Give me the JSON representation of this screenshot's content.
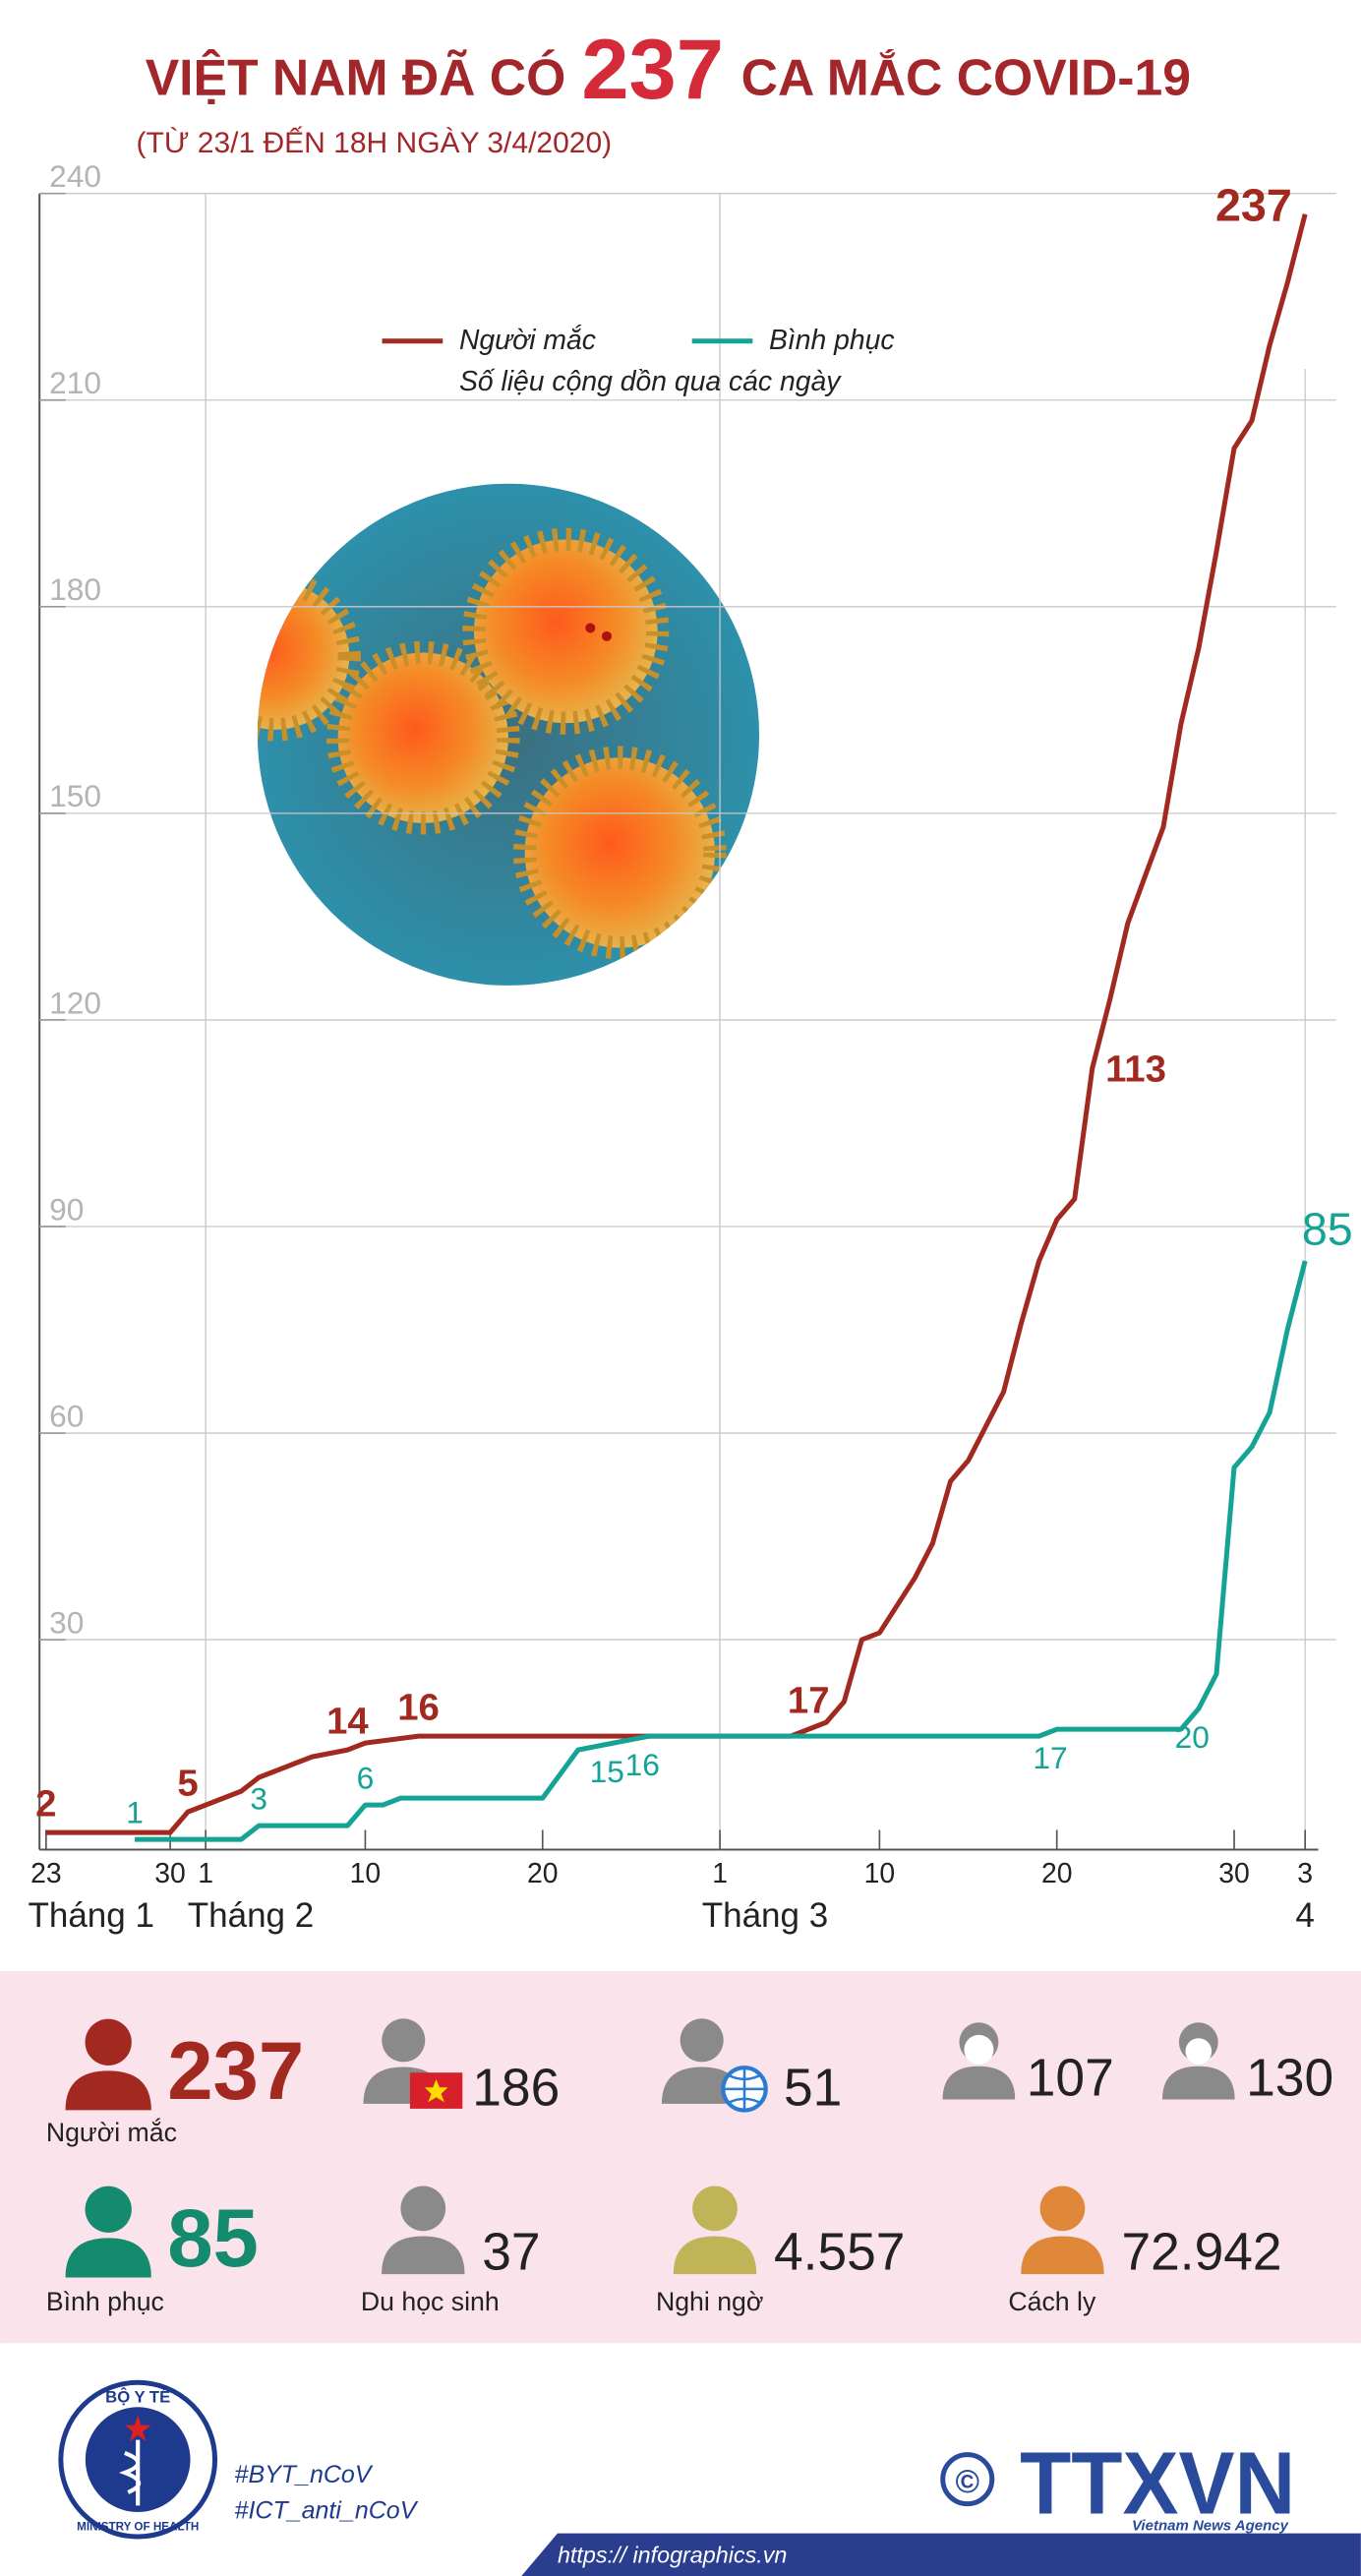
{
  "chart_data": {
    "type": "line",
    "title_pre": "VIỆT NAM ĐÃ CÓ",
    "title_number": "237",
    "title_post": "CA MẮC COVID-19",
    "subtitle": "(TỪ 23/1 ĐẾN 18H NGÀY 3/4/2020)",
    "legend_note": "Số liệu cộng dồn qua các ngày",
    "xlim": [
      "2020-01-23",
      "2020-04-03"
    ],
    "xticks": [
      {
        "value": "2020-01-23",
        "label": "23"
      },
      {
        "value": "2020-01-30",
        "label": "30"
      },
      {
        "value": "2020-02-01",
        "label": "1"
      },
      {
        "value": "2020-02-10",
        "label": "10"
      },
      {
        "value": "2020-02-20",
        "label": "20"
      },
      {
        "value": "2020-03-01",
        "label": "1"
      },
      {
        "value": "2020-03-10",
        "label": "10"
      },
      {
        "value": "2020-03-20",
        "label": "20"
      },
      {
        "value": "2020-03-30",
        "label": "30"
      },
      {
        "value": "2020-04-03",
        "label": "3"
      }
    ],
    "x_groups": [
      {
        "value": "2020-01-23",
        "label": "Tháng 1"
      },
      {
        "value": "2020-02-01",
        "label": "Tháng 2"
      },
      {
        "value": "2020-03-01",
        "label": "Tháng 3"
      },
      {
        "value": "2020-04-03",
        "label": "4"
      }
    ],
    "ylim": [
      0,
      240
    ],
    "yticks": [
      30,
      60,
      90,
      120,
      150,
      180,
      210,
      240
    ],
    "grid": true,
    "series": [
      {
        "name": "Người mắc",
        "color": "#a2291f",
        "x": [
          "2020-01-23",
          "2020-01-30",
          "2020-01-31",
          "2020-02-01",
          "2020-02-03",
          "2020-02-04",
          "2020-02-06",
          "2020-02-07",
          "2020-02-09",
          "2020-02-10",
          "2020-02-13",
          "2020-03-05",
          "2020-03-06",
          "2020-03-07",
          "2020-03-08",
          "2020-03-09",
          "2020-03-10",
          "2020-03-11",
          "2020-03-12",
          "2020-03-13",
          "2020-03-14",
          "2020-03-15",
          "2020-03-16",
          "2020-03-17",
          "2020-03-18",
          "2020-03-19",
          "2020-03-20",
          "2020-03-21",
          "2020-03-22",
          "2020-03-23",
          "2020-03-24",
          "2020-03-25",
          "2020-03-26",
          "2020-03-27",
          "2020-03-28",
          "2020-03-29",
          "2020-03-30",
          "2020-03-31",
          "2020-04-01",
          "2020-04-02",
          "2020-04-03"
        ],
        "values": [
          2,
          2,
          5,
          6,
          8,
          10,
          12,
          13,
          14,
          15,
          16,
          16,
          17,
          18,
          21,
          30,
          31,
          35,
          39,
          44,
          53,
          56,
          61,
          66,
          76,
          85,
          91,
          94,
          113,
          123,
          134,
          141,
          148,
          163,
          174,
          188,
          203,
          207,
          218,
          227,
          237
        ],
        "labels": [
          {
            "x": "2020-01-23",
            "value": 2
          },
          {
            "x": "2020-01-31",
            "value": 5
          },
          {
            "x": "2020-02-09",
            "value": 14
          },
          {
            "x": "2020-02-13",
            "value": 16
          },
          {
            "x": "2020-03-06",
            "value": 17
          },
          {
            "x": "2020-03-22",
            "value": 113
          },
          {
            "x": "2020-04-03",
            "value": 237
          }
        ]
      },
      {
        "name": "Bình phục",
        "color": "#14a394",
        "x": [
          "2020-01-28",
          "2020-02-03",
          "2020-02-04",
          "2020-02-09",
          "2020-02-10",
          "2020-02-11",
          "2020-02-12",
          "2020-02-20",
          "2020-02-22",
          "2020-02-24",
          "2020-02-26",
          "2020-03-19",
          "2020-03-20",
          "2020-03-27",
          "2020-03-28",
          "2020-03-29",
          "2020-03-30",
          "2020-03-31",
          "2020-04-01",
          "2020-04-02",
          "2020-04-03"
        ],
        "values": [
          1,
          1,
          3,
          3,
          6,
          6,
          7,
          7,
          14,
          15,
          16,
          16,
          17,
          17,
          20,
          25,
          55,
          58,
          63,
          75,
          85
        ],
        "labels": [
          {
            "x": "2020-01-28",
            "value": 1
          },
          {
            "x": "2020-02-04",
            "value": 3
          },
          {
            "x": "2020-02-10",
            "value": 6
          },
          {
            "x": "2020-02-24",
            "value": 15
          },
          {
            "x": "2020-02-26",
            "value": 16
          },
          {
            "x": "2020-03-20",
            "value": 17
          },
          {
            "x": "2020-03-28",
            "value": 20
          },
          {
            "x": "2020-04-03",
            "value": 85
          }
        ]
      }
    ]
  },
  "stats": [
    {
      "value": "237",
      "label": "Người mắc"
    },
    {
      "value": "186"
    },
    {
      "value": "51"
    },
    {
      "value": "107"
    },
    {
      "value": "130"
    },
    {
      "value": "85",
      "label": "Bình phục"
    },
    {
      "value": "37",
      "label": "Du học sinh"
    },
    {
      "value": "4.557",
      "label": "Nghi ngờ"
    },
    {
      "value": "72.942",
      "label": "Cách ly"
    }
  ],
  "footer": {
    "logo_top": "BỘ Y TẾ",
    "logo_bottom": "MINISTRY OF HEALTH",
    "hashtags": [
      "#BYT_nCoV",
      "#ICT_anti_nCoV"
    ],
    "copyright": "©",
    "agency": "TTXVN",
    "agency_sub": "Vietnam News Agency",
    "url": "https:// infographics.vn"
  }
}
